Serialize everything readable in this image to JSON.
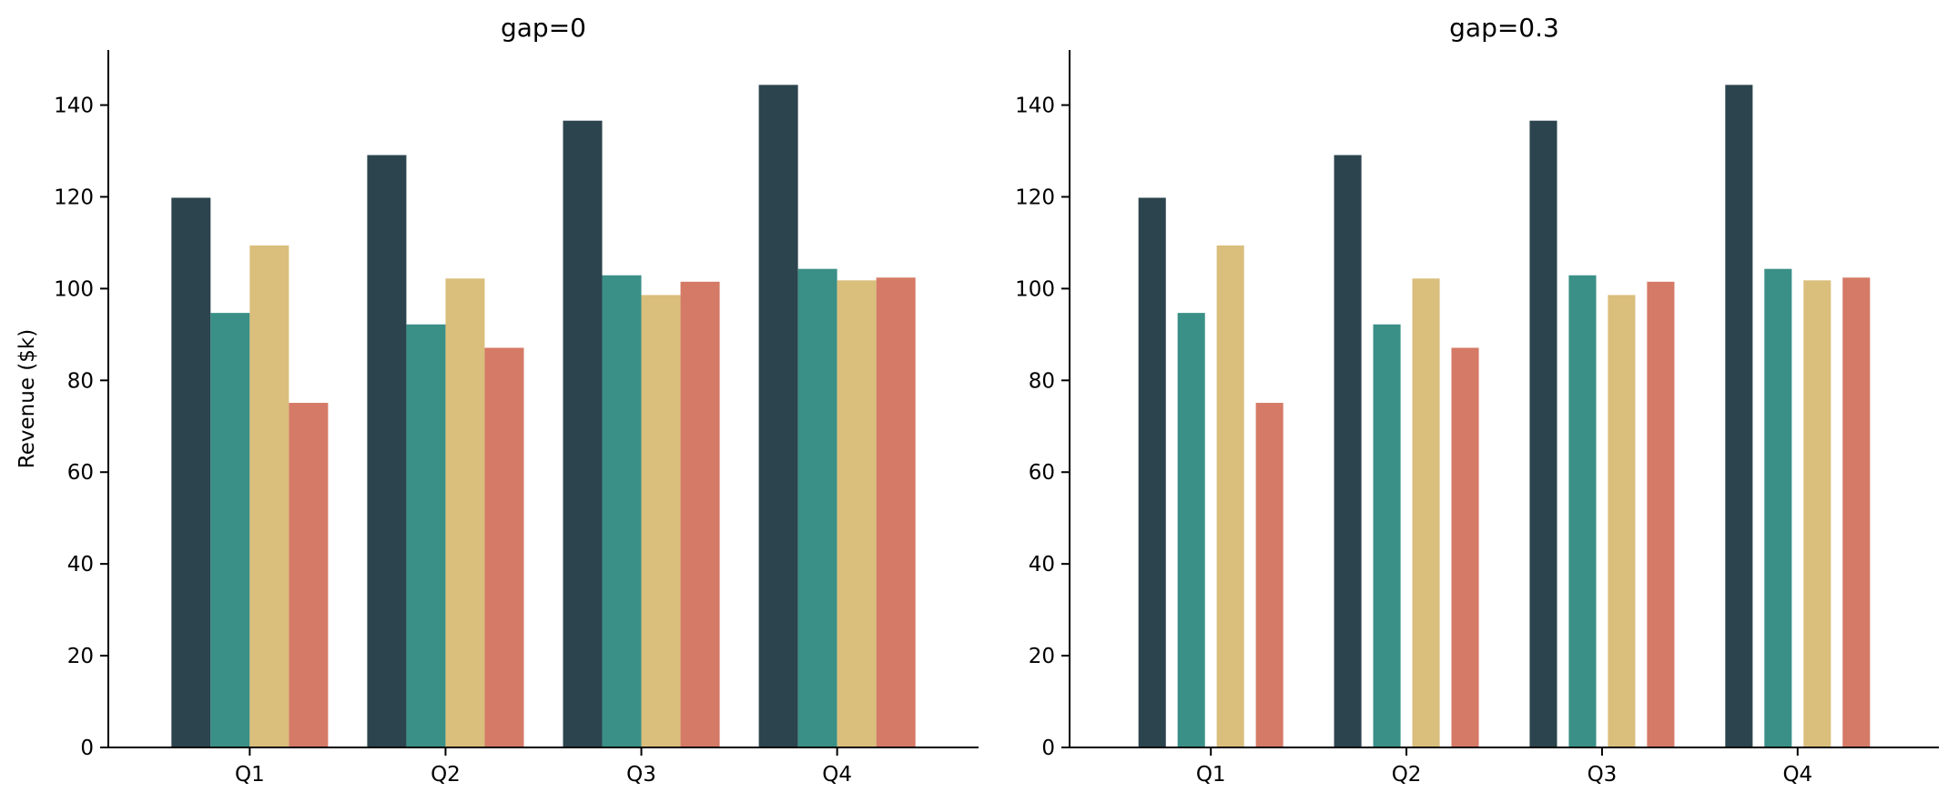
{
  "chart_data": [
    {
      "type": "bar",
      "title": "gap=0",
      "xlabel": "",
      "ylabel": "Revenue ($k)",
      "categories": [
        "Q1",
        "Q2",
        "Q3",
        "Q4"
      ],
      "ylim": [
        0,
        152
      ],
      "yticks": [
        0,
        20,
        40,
        60,
        80,
        100,
        120,
        140
      ],
      "gap": 0,
      "grid": false,
      "series": [
        {
          "color": "#2c444e",
          "values": [
            119.8,
            129.1,
            136.6,
            144.4
          ]
        },
        {
          "color": "#3a9087",
          "values": [
            94.7,
            92.2,
            102.9,
            104.3
          ]
        },
        {
          "color": "#dabe7c",
          "values": [
            109.4,
            102.2,
            98.6,
            101.8
          ]
        },
        {
          "color": "#d57a66",
          "values": [
            75.1,
            87.1,
            101.5,
            102.4
          ]
        }
      ]
    },
    {
      "type": "bar",
      "title": "gap=0.3",
      "xlabel": "",
      "ylabel": "",
      "categories": [
        "Q1",
        "Q2",
        "Q3",
        "Q4"
      ],
      "ylim": [
        0,
        152
      ],
      "yticks": [
        0,
        20,
        40,
        60,
        80,
        100,
        120,
        140
      ],
      "gap": 0.3,
      "grid": false,
      "series": [
        {
          "color": "#2c444e",
          "values": [
            119.8,
            129.1,
            136.6,
            144.4
          ]
        },
        {
          "color": "#3a9087",
          "values": [
            94.7,
            92.2,
            102.9,
            104.3
          ]
        },
        {
          "color": "#dabe7c",
          "values": [
            109.4,
            102.2,
            98.6,
            101.8
          ]
        },
        {
          "color": "#d57a66",
          "values": [
            75.1,
            87.1,
            101.5,
            102.4
          ]
        }
      ]
    }
  ]
}
